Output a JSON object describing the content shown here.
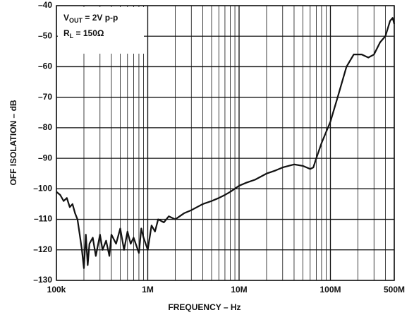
{
  "chart_data": {
    "type": "line",
    "xlabel": "FREQUENCY – Hz",
    "ylabel": "OFF ISOLATION – dB",
    "xscale": "log",
    "grid": true,
    "xlim": [
      100000,
      500000000
    ],
    "ylim": [
      -130,
      -40
    ],
    "xticks": [
      {
        "value": 100000,
        "label": "100k"
      },
      {
        "value": 1000000,
        "label": "1M"
      },
      {
        "value": 10000000,
        "label": "10M"
      },
      {
        "value": 100000000,
        "label": "100M"
      },
      {
        "value": 500000000,
        "label": "500M"
      }
    ],
    "yticks": [
      {
        "value": -130,
        "label": "–130"
      },
      {
        "value": -120,
        "label": "–120"
      },
      {
        "value": -110,
        "label": "–110"
      },
      {
        "value": -100,
        "label": "–100"
      },
      {
        "value": -90,
        "label": "–90"
      },
      {
        "value": -80,
        "label": "–80"
      },
      {
        "value": -70,
        "label": "–70"
      },
      {
        "value": -60,
        "label": "–60"
      },
      {
        "value": -50,
        "label": "–50"
      },
      {
        "value": -40,
        "label": "–40"
      }
    ],
    "annotations": [
      {
        "main": "V",
        "sub": "OUT",
        "rest": " = 2V p-p"
      },
      {
        "main": "R",
        "sub": "L",
        "rest": " = 150Ω"
      }
    ],
    "x": [
      100000,
      110000,
      120000,
      130000,
      140000,
      150000,
      160000,
      170000,
      180000,
      190000,
      200000,
      210000,
      220000,
      230000,
      250000,
      270000,
      300000,
      320000,
      350000,
      380000,
      400000,
      450000,
      500000,
      550000,
      600000,
      650000,
      700000,
      800000,
      850000,
      900000,
      1000000,
      1100000,
      1200000,
      1300000,
      1500000,
      1700000,
      2000000,
      2500000,
      3000000,
      4000000,
      5000000,
      6000000,
      7000000,
      8000000,
      10000000,
      12000000,
      15000000,
      20000000,
      25000000,
      30000000,
      40000000,
      50000000,
      60000000,
      65000000,
      70000000,
      80000000,
      100000000,
      120000000,
      150000000,
      180000000,
      220000000,
      260000000,
      300000000,
      350000000,
      400000000,
      450000000,
      480000000,
      500000000
    ],
    "series": [
      {
        "color": "#111111",
        "values": [
          -101,
          -102,
          -104,
          -103,
          -106,
          -105,
          -108,
          -110,
          -115,
          -120,
          -126,
          -115,
          -125,
          -118,
          -116,
          -122,
          -115,
          -120,
          -117,
          -122,
          -115,
          -118,
          -113,
          -120,
          -114,
          -118,
          -116,
          -121,
          -113,
          -116,
          -120,
          -112,
          -114,
          -110,
          -111,
          -109,
          -110,
          -108,
          -107,
          -105,
          -104,
          -103,
          -102,
          -101,
          -99,
          -98,
          -97,
          -95,
          -94,
          -93,
          -92,
          -92.5,
          -93.5,
          -93,
          -90,
          -85,
          -78,
          -70,
          -60,
          -56,
          -56,
          -57,
          -56,
          -52,
          -50,
          -45,
          -44,
          -46
        ]
      }
    ]
  }
}
